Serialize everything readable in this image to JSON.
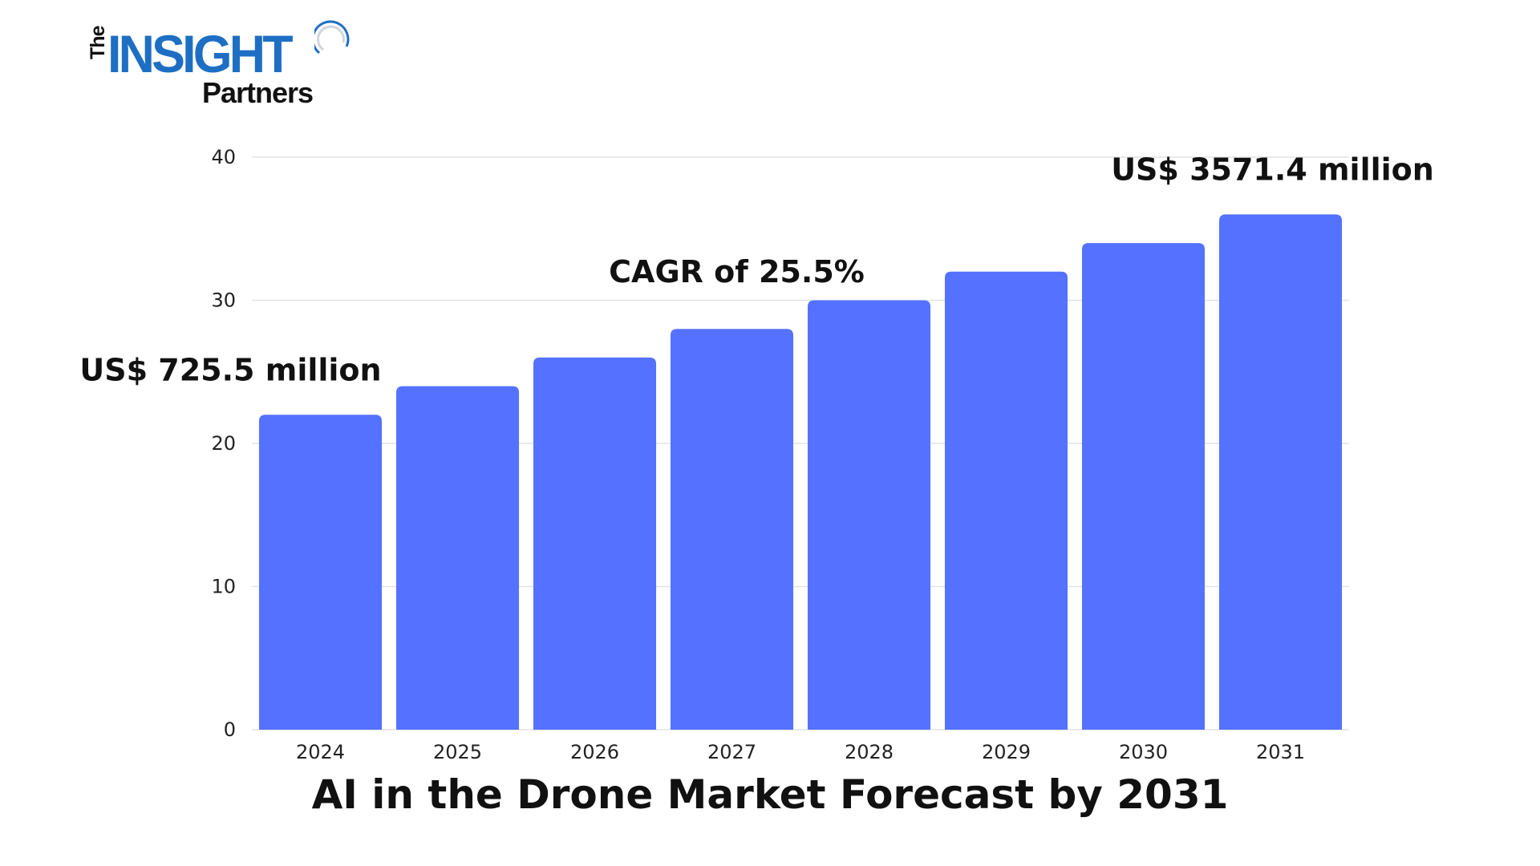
{
  "logo": {
    "the": "The",
    "insight": "INSIGHT",
    "partners": "Partners"
  },
  "colors": {
    "bar": "#5472ff",
    "grid": "#e3e3e3",
    "logo_blue": "#1e6fc4"
  },
  "chart_data": {
    "type": "bar",
    "title": "AI in the Drone Market Forecast by 2031",
    "xlabel": "",
    "ylabel": "",
    "categories": [
      "2024",
      "2025",
      "2026",
      "2027",
      "2028",
      "2029",
      "2030",
      "2031"
    ],
    "values": [
      22,
      24,
      26,
      28,
      30,
      32,
      34,
      36
    ],
    "ylim": [
      0,
      40
    ],
    "yticks": [
      "0",
      "10",
      "20",
      "30",
      "40"
    ],
    "grid": true,
    "annotations": [
      {
        "text": "US$ 725.5 million",
        "category": "2024"
      },
      {
        "text": "CAGR of 25.5%",
        "category": "2027"
      },
      {
        "text": "US$ 3571.4 million",
        "category": "2031"
      }
    ]
  }
}
